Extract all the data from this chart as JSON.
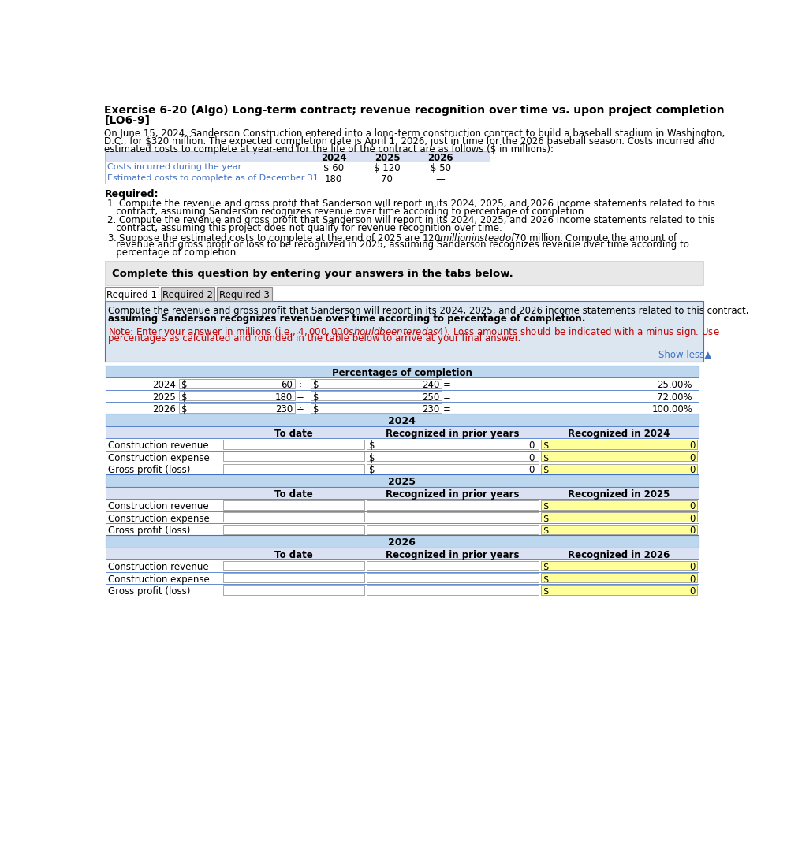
{
  "title_line1": "Exercise 6-20 (Algo) Long-term contract; revenue recognition over time vs. upon project completion",
  "title_line2": "[LO6-9]",
  "body_line1": "On June 15, 2024, Sanderson Construction entered into a long-term construction contract to build a baseball stadium in Washington,",
  "body_line2": "D.C., for $320 million. The expected completion date is April 1, 2026, just in time for the 2026 baseball season. Costs incurred and",
  "body_line3": "estimated costs to complete at year-end for the life of the contract are as follows ($ in millions):",
  "top_table_headers": [
    "2024",
    "2025",
    "2026"
  ],
  "top_table_rows": [
    {
      "label": "Costs incurred during the year",
      "vals": [
        "$ 60",
        "$ 120",
        "$ 50"
      ]
    },
    {
      "label": "Estimated costs to complete as of December 31",
      "vals": [
        "180",
        "70",
        "—"
      ]
    }
  ],
  "required_label": "Required:",
  "req1_line1": "1. Compute the revenue and gross profit that Sanderson will report in its 2024, 2025, and 2026 income statements related to this",
  "req1_line2": "   contract, assuming Sanderson recognizes revenue over time according to percentage of completion.",
  "req2_line1": "2. Compute the revenue and gross profit that Sanderson will report in its 2024, 2025, and 2026 income statements related to this",
  "req2_line2": "   contract, assuming this project does not qualify for revenue recognition over time.",
  "req3_line1": "3. Suppose the estimated costs to complete at the end of 2025 are $120 million instead of $70 million. Compute the amount of",
  "req3_line2": "   revenue and gross profit or loss to be recognized in 2025, assuming Sanderson recognizes revenue over time according to",
  "req3_line3": "   percentage of completion.",
  "complete_banner": "Complete this question by entering your answers in the tabs below.",
  "tab1": "Required 1",
  "tab2": "Required 2",
  "tab3": "Required 3",
  "instr_line1": "Compute the revenue and gross profit that Sanderson will report in its 2024, 2025, and 2026 income statements related to this contract,",
  "instr_line2": "assuming Sanderson recognizes revenue over time according to percentage of completion.",
  "note_line1": "Note: Enter your answer in millions (i.e., $4,000,000 should be entered as $4). Loss amounts should be indicated with a minus sign. Use",
  "note_line2": "percentages as calculated and rounded in the table below to arrive at your final answer.",
  "show_less": "Show less▲",
  "pct_header": "Percentages of completion",
  "pct_rows": [
    {
      "year": "2024",
      "num": "60",
      "den": "240",
      "pct": "25.00%"
    },
    {
      "year": "2025",
      "num": "180",
      "den": "250",
      "pct": "72.00%"
    },
    {
      "year": "2026",
      "num": "230",
      "den": "230",
      "pct": "100.00%"
    }
  ],
  "sections": [
    {
      "year": "2024",
      "col3": "Recognized in 2024",
      "show_dollar_in_c2": true,
      "rows": [
        "Construction revenue",
        "Construction expense",
        "Gross profit (loss)"
      ]
    },
    {
      "year": "2025",
      "col3": "Recognized in 2025",
      "show_dollar_in_c2": false,
      "rows": [
        "Construction revenue",
        "Construction expense",
        "Gross profit (loss)"
      ]
    },
    {
      "year": "2026",
      "col3": "Recognized in 2026",
      "show_dollar_in_c2": false,
      "rows": [
        "Construction revenue",
        "Construction expense",
        "Gross profit (loss)"
      ]
    }
  ],
  "bg": "#ffffff",
  "blue_header": "#bdd7ee",
  "light_blue_col": "#d9e1f2",
  "border_blue": "#4472c4",
  "banner_bg": "#e8e8e8",
  "instr_bg": "#dce6f1",
  "yellow": "#ffff99",
  "red_text": "#c00000",
  "link_blue": "#4472c4",
  "tab_border": "#888888",
  "row_border": "#aaaaaa"
}
